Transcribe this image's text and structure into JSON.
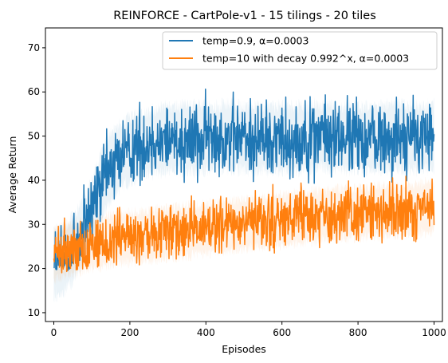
{
  "chart_data": {
    "type": "line",
    "title": "REINFORCE - CartPole-v1 - 15 tilings - 20 tiles",
    "xlabel": "Episodes",
    "ylabel": "Average Return",
    "xlim": [
      -22,
      1022
    ],
    "ylim": [
      8,
      74.5
    ],
    "xticks": [
      0,
      200,
      400,
      600,
      800,
      1000
    ],
    "yticks": [
      10,
      20,
      30,
      40,
      50,
      60,
      70
    ],
    "xtick_labels": [
      "0",
      "200",
      "400",
      "600",
      "800",
      "1000"
    ],
    "ytick_labels": [
      "10",
      "20",
      "30",
      "40",
      "50",
      "60",
      "70"
    ],
    "grid": false,
    "legend_position": "top-right",
    "n_episodes": 1000,
    "series": [
      {
        "name": "temp=0.9, α=0.0003",
        "color": "#1f77b4",
        "band_color": "#1f77b4",
        "x": [
          0,
          25,
          50,
          75,
          100,
          125,
          150,
          175,
          200,
          250,
          300,
          350,
          400,
          450,
          500,
          550,
          600,
          650,
          700,
          750,
          800,
          850,
          900,
          950,
          1000
        ],
        "values": [
          21,
          22,
          24.5,
          28,
          33,
          39,
          43,
          45.5,
          47,
          48.5,
          49.5,
          49.5,
          49.5,
          50,
          49.5,
          49.5,
          49.5,
          49.5,
          50,
          49.5,
          49.5,
          49.5,
          50,
          49.5,
          50
        ],
        "range_min": 19.3,
        "range_max": 63
      },
      {
        "name": "temp=10 with decay 0.992^x, α=0.0003",
        "color": "#ff7f0e",
        "band_color": "#ff7f0e",
        "x": [
          0,
          25,
          50,
          75,
          100,
          150,
          200,
          250,
          300,
          350,
          400,
          450,
          500,
          550,
          600,
          650,
          700,
          750,
          800,
          850,
          900,
          950,
          1000
        ],
        "values": [
          23,
          24,
          24.5,
          25,
          25.5,
          26.5,
          27,
          27.5,
          28,
          28.5,
          29,
          29.5,
          30,
          30.5,
          31,
          31.5,
          32,
          32.5,
          32.5,
          33,
          33,
          33.5,
          34
        ],
        "range_min": 19,
        "range_max": 45
      }
    ]
  }
}
